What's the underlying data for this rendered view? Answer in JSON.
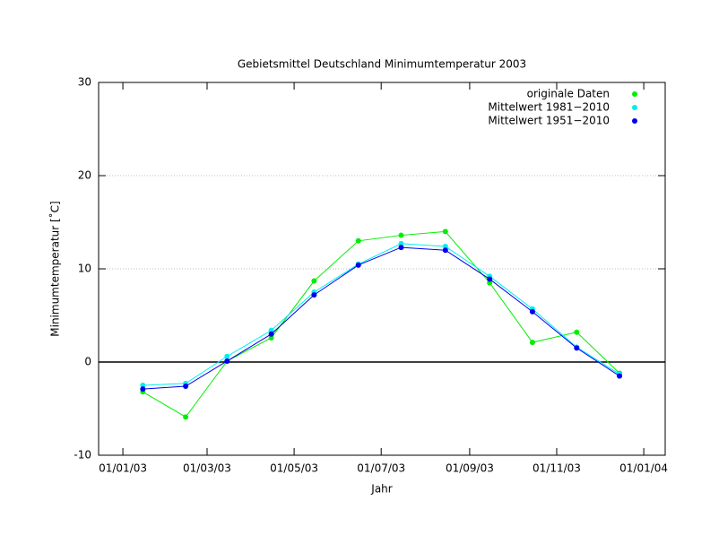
{
  "chart_data": {
    "type": "line",
    "title": "Gebietsmittel Deutschland Minimumtemperatur 2003",
    "xlabel": "Jahr",
    "ylabel": "Minimumtemperatur [˚C]",
    "x": [
      "2003-01-15",
      "2003-02-14",
      "2003-03-15",
      "2003-04-15",
      "2003-05-15",
      "2003-06-15",
      "2003-07-15",
      "2003-08-15",
      "2003-09-15",
      "2003-10-15",
      "2003-11-15",
      "2003-12-15"
    ],
    "series": [
      {
        "name": "originale Daten",
        "color": "#00ee00",
        "values": [
          -3.2,
          -5.9,
          0.1,
          2.6,
          8.7,
          13.0,
          13.6,
          14.0,
          8.5,
          2.1,
          3.2,
          -1.2
        ]
      },
      {
        "name": "Mittelwert 1981−2010",
        "color": "#00eeee",
        "values": [
          -2.5,
          -2.3,
          0.6,
          3.4,
          7.5,
          10.5,
          12.7,
          12.4,
          9.2,
          5.7,
          1.6,
          -1.3
        ]
      },
      {
        "name": "Mittelwert 1951−2010",
        "color": "#0000ee",
        "values": [
          -2.9,
          -2.6,
          0.1,
          3.0,
          7.2,
          10.4,
          12.3,
          12.0,
          8.9,
          5.4,
          1.5,
          -1.5
        ]
      }
    ],
    "xlim": [
      "2002-12-15",
      "2004-01-16"
    ],
    "xticks": [
      {
        "value": "2003-01-01",
        "label": "01/01/03"
      },
      {
        "value": "2003-03-01",
        "label": "01/03/03"
      },
      {
        "value": "2003-05-01",
        "label": "01/05/03"
      },
      {
        "value": "2003-07-01",
        "label": "01/07/03"
      },
      {
        "value": "2003-09-01",
        "label": "01/09/03"
      },
      {
        "value": "2003-11-01",
        "label": "01/11/03"
      },
      {
        "value": "2004-01-01",
        "label": "01/01/04"
      }
    ],
    "ylim": [
      -10,
      30
    ],
    "yticks": [
      -10,
      0,
      10,
      20,
      30
    ],
    "grid": true,
    "legend": "top-right"
  }
}
